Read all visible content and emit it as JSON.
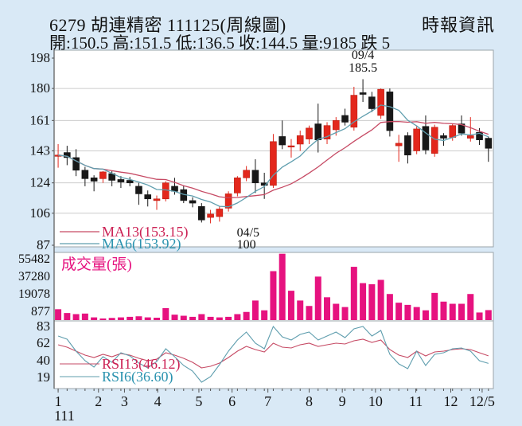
{
  "header": {
    "title": "6279  胡連精密 111125(周線圖)",
    "source": "時報資訊",
    "quote_line": "開:150.5 高:151.5 低:136.5 收:144.5 量:9185 跌 5"
  },
  "colors": {
    "background": "#d9e9f6",
    "panel_bg": "#ffffff",
    "panel_border": "#9aa4aa",
    "axis_line": "#555555",
    "grid": "#cccccc",
    "up_candle": "#e3271c",
    "up_candle_edge": "#b81d12",
    "down_candle": "#181818",
    "ma13_line": "#c64a64",
    "ma6_line": "#5f9eae",
    "ma13_text": "#cc2255",
    "ma6_text": "#2b93af",
    "volume": "#e6127f",
    "label_text": "#111111"
  },
  "chart_data": {
    "type": "candlestick",
    "title": "6279 胡連精密 weekly chart (周線圖)",
    "x_axis": {
      "year_label": "111",
      "months": [
        {
          "label": "1",
          "week": 1
        },
        {
          "label": "2",
          "week": 5.5
        },
        {
          "label": "3",
          "week": 8.4
        },
        {
          "label": "4",
          "week": 12.1
        },
        {
          "label": "5",
          "week": 16.7
        },
        {
          "label": "6",
          "week": 20.4
        },
        {
          "label": "7",
          "week": 24.4
        },
        {
          "label": "8",
          "week": 29
        },
        {
          "label": "9",
          "week": 32.7
        },
        {
          "label": "10",
          "week": 36.4
        },
        {
          "label": "11",
          "week": 40.9
        },
        {
          "label": "12",
          "week": 44.8
        },
        {
          "label": "12/5",
          "week": 48.3
        }
      ]
    },
    "main_panel": {
      "y_ticks": [
        198,
        180,
        161,
        143,
        124,
        106,
        87
      ],
      "ylim": [
        87,
        198
      ],
      "legend": [
        {
          "label": "MA13(153.15)",
          "series": "ma13"
        },
        {
          "label": "MA6(153.92)",
          "series": "ma6"
        }
      ],
      "ma_windows": {
        "ma13": 13,
        "ma6": 6
      },
      "annotations": [
        {
          "lines": [
            "09/4",
            "185.5"
          ],
          "week": 35,
          "position": "above"
        },
        {
          "lines": [
            "04/5",
            "100"
          ],
          "week": 18,
          "position": "below-right"
        }
      ],
      "candles": [
        {
          "o": 140,
          "h": 147,
          "l": 133,
          "c": 140.5,
          "dir": "up"
        },
        {
          "o": 142,
          "h": 146,
          "l": 134.5,
          "c": 139,
          "dir": "down"
        },
        {
          "o": 139,
          "h": 144,
          "l": 128,
          "c": 131.5,
          "dir": "down"
        },
        {
          "o": 131.5,
          "h": 133.5,
          "l": 122,
          "c": 126.5,
          "dir": "down"
        },
        {
          "o": 127,
          "h": 128.5,
          "l": 119,
          "c": 125,
          "dir": "down"
        },
        {
          "o": 126.5,
          "h": 131,
          "l": 124,
          "c": 130.5,
          "dir": "up"
        },
        {
          "o": 129.5,
          "h": 131,
          "l": 122,
          "c": 125.5,
          "dir": "down"
        },
        {
          "o": 126,
          "h": 128,
          "l": 121,
          "c": 124.5,
          "dir": "down"
        },
        {
          "o": 125.5,
          "h": 127.5,
          "l": 122,
          "c": 124,
          "dir": "down"
        },
        {
          "o": 122,
          "h": 124,
          "l": 111,
          "c": 117.5,
          "dir": "down"
        },
        {
          "o": 117,
          "h": 119.5,
          "l": 110,
          "c": 114.5,
          "dir": "down"
        },
        {
          "o": 113.5,
          "h": 116.5,
          "l": 108,
          "c": 114.5,
          "dir": "up"
        },
        {
          "o": 114.5,
          "h": 125,
          "l": 113,
          "c": 124,
          "dir": "up"
        },
        {
          "o": 122,
          "h": 127,
          "l": 117,
          "c": 119,
          "dir": "down"
        },
        {
          "o": 120,
          "h": 122.5,
          "l": 112,
          "c": 113.5,
          "dir": "down"
        },
        {
          "o": 113.5,
          "h": 115.5,
          "l": 109.5,
          "c": 112,
          "dir": "down"
        },
        {
          "o": 110,
          "h": 112,
          "l": 100.5,
          "c": 102,
          "dir": "down"
        },
        {
          "o": 103.5,
          "h": 108,
          "l": 100,
          "c": 105.5,
          "dir": "up"
        },
        {
          "o": 104,
          "h": 110,
          "l": 101,
          "c": 108.5,
          "dir": "up"
        },
        {
          "o": 109,
          "h": 119,
          "l": 107,
          "c": 117.5,
          "dir": "up"
        },
        {
          "o": 118,
          "h": 128,
          "l": 116,
          "c": 127,
          "dir": "up"
        },
        {
          "o": 127,
          "h": 134,
          "l": 125,
          "c": 131.5,
          "dir": "up"
        },
        {
          "o": 131.5,
          "h": 138,
          "l": 118,
          "c": 124,
          "dir": "down"
        },
        {
          "o": 124,
          "h": 130,
          "l": 114.5,
          "c": 122.5,
          "dir": "down"
        },
        {
          "o": 122.5,
          "h": 153,
          "l": 121,
          "c": 148.5,
          "dir": "up"
        },
        {
          "o": 151.5,
          "h": 161,
          "l": 144,
          "c": 146.5,
          "dir": "down"
        },
        {
          "o": 145.5,
          "h": 150,
          "l": 139,
          "c": 146,
          "dir": "up"
        },
        {
          "o": 147,
          "h": 155,
          "l": 143,
          "c": 152,
          "dir": "up"
        },
        {
          "o": 150,
          "h": 158,
          "l": 147,
          "c": 156.5,
          "dir": "up"
        },
        {
          "o": 159,
          "h": 171,
          "l": 142,
          "c": 149.5,
          "dir": "down"
        },
        {
          "o": 150,
          "h": 160,
          "l": 147,
          "c": 158,
          "dir": "up"
        },
        {
          "o": 155.5,
          "h": 163,
          "l": 152,
          "c": 161,
          "dir": "up"
        },
        {
          "o": 164,
          "h": 168,
          "l": 158,
          "c": 160,
          "dir": "down"
        },
        {
          "o": 157,
          "h": 181,
          "l": 155,
          "c": 176,
          "dir": "up"
        },
        {
          "o": 177.5,
          "h": 185.5,
          "l": 172,
          "c": 176.5,
          "dir": "down"
        },
        {
          "o": 175,
          "h": 178,
          "l": 166,
          "c": 168,
          "dir": "down"
        },
        {
          "o": 164,
          "h": 180,
          "l": 162,
          "c": 179.5,
          "dir": "up"
        },
        {
          "o": 178,
          "h": 180,
          "l": 151.5,
          "c": 155,
          "dir": "down"
        },
        {
          "o": 146,
          "h": 152.5,
          "l": 136.5,
          "c": 147.5,
          "dir": "up"
        },
        {
          "o": 152,
          "h": 154,
          "l": 135.5,
          "c": 140.5,
          "dir": "down"
        },
        {
          "o": 143,
          "h": 158,
          "l": 141,
          "c": 156,
          "dir": "up"
        },
        {
          "o": 157.5,
          "h": 164,
          "l": 141,
          "c": 143.5,
          "dir": "down"
        },
        {
          "o": 141.5,
          "h": 158.5,
          "l": 139.5,
          "c": 157,
          "dir": "up"
        },
        {
          "o": 152,
          "h": 153.5,
          "l": 146,
          "c": 150.5,
          "dir": "down"
        },
        {
          "o": 151,
          "h": 159,
          "l": 149,
          "c": 158,
          "dir": "up"
        },
        {
          "o": 159,
          "h": 164,
          "l": 152,
          "c": 153.5,
          "dir": "down"
        },
        {
          "o": 150.5,
          "h": 163,
          "l": 148.5,
          "c": 152,
          "dir": "up"
        },
        {
          "o": 154,
          "h": 156.5,
          "l": 146.5,
          "c": 149.5,
          "dir": "down"
        },
        {
          "o": 150.5,
          "h": 151.5,
          "l": 136.5,
          "c": 144.5,
          "dir": "down"
        }
      ]
    },
    "volume_panel": {
      "label": "成交量(張)",
      "y_ticks": [
        55482,
        37280,
        19078,
        877
      ],
      "scale_max": 61500,
      "values": [
        10000,
        6500,
        5500,
        6000,
        2500,
        1500,
        2000,
        2500,
        3000,
        3500,
        2500,
        2200,
        11000,
        5000,
        4000,
        3000,
        5500,
        3000,
        2500,
        3000,
        5500,
        7500,
        18000,
        9000,
        45000,
        61000,
        27000,
        18000,
        13000,
        40000,
        21000,
        15000,
        12000,
        49000,
        34000,
        33000,
        37000,
        24000,
        16000,
        14000,
        12000,
        9000,
        25000,
        17000,
        15000,
        15000,
        24000,
        7000,
        9185
      ]
    },
    "rsi_panel": {
      "y_ticks": [
        83,
        62,
        40,
        19
      ],
      "ylim": [
        5,
        90
      ],
      "legend": [
        {
          "label": "RSI13(46.12)",
          "series": "rsi13"
        },
        {
          "label": "RSI6(36.60)",
          "series": "rsi6"
        }
      ],
      "rsi13": [
        60,
        57,
        52,
        47,
        44,
        48,
        45,
        49,
        47,
        43,
        40,
        42,
        50,
        47,
        43,
        38,
        31,
        33,
        37,
        44,
        52,
        58,
        54,
        51,
        62,
        57,
        56,
        60,
        62,
        58,
        60,
        62,
        61,
        65,
        67,
        63,
        66,
        54,
        47,
        44,
        52,
        46,
        51,
        52,
        54,
        55,
        54,
        50,
        46.12
      ],
      "rsi6": [
        71,
        67,
        52,
        40,
        32,
        45,
        38,
        50,
        46,
        37,
        31,
        39,
        55,
        45,
        34,
        27,
        13,
        20,
        35,
        52,
        66,
        76,
        62,
        55,
        83,
        70,
        66,
        73,
        76,
        66,
        71,
        76,
        69,
        80,
        83,
        71,
        78,
        48,
        36,
        30,
        52,
        34,
        48,
        50,
        55,
        56,
        52,
        40,
        36.6
      ]
    }
  }
}
